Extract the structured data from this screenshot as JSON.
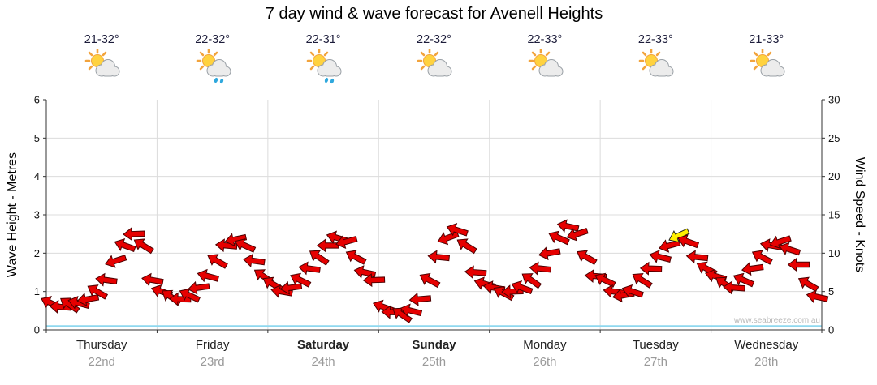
{
  "title": "7 day wind & wave forecast for Avenell Heights",
  "watermark": "www.seabreeze.com.au",
  "chart_data": {
    "type": "wind-arrow-series",
    "days": [
      {
        "name": "Thursday",
        "date": "22nd",
        "temp": "21-32°",
        "icon": "sun-cloud",
        "bold": false
      },
      {
        "name": "Friday",
        "date": "23rd",
        "temp": "22-32°",
        "icon": "sun-cloud-rain",
        "bold": false
      },
      {
        "name": "Saturday",
        "date": "24th",
        "temp": "22-31°",
        "icon": "sun-cloud-rain",
        "bold": true
      },
      {
        "name": "Sunday",
        "date": "25th",
        "temp": "22-32°",
        "icon": "sun-cloud",
        "bold": true
      },
      {
        "name": "Monday",
        "date": "26th",
        "temp": "22-33°",
        "icon": "sun-cloud",
        "bold": false
      },
      {
        "name": "Tuesday",
        "date": "27th",
        "temp": "22-33°",
        "icon": "sun-cloud",
        "bold": false
      },
      {
        "name": "Wednesday",
        "date": "28th",
        "temp": "21-33°",
        "icon": "sun-cloud",
        "bold": false
      }
    ],
    "left_axis": {
      "label": "Wave Height - Metres",
      "min": 0,
      "max": 6,
      "ticks": [
        0,
        1,
        2,
        3,
        4,
        5,
        6
      ]
    },
    "right_axis": {
      "label": "Wind Speed - Knots",
      "min": 0,
      "max": 30,
      "ticks": [
        0,
        5,
        10,
        15,
        20,
        25,
        30
      ]
    },
    "grid": {
      "show": true,
      "color": "#dcdcdc"
    },
    "wind": {
      "samples_per_day": 12,
      "speeds_knots": [
        3.5,
        3,
        3.3,
        3.5,
        4,
        5,
        6.5,
        9,
        11,
        12.5,
        11,
        6.5,
        5,
        4.3,
        4,
        4.5,
        5.5,
        7,
        9,
        11,
        11.8,
        11,
        9,
        7,
        6,
        5,
        5.5,
        6.5,
        8,
        9.5,
        11,
        12,
        11.5,
        9.5,
        7.5,
        6.5,
        3,
        2.3,
        2,
        2.5,
        4,
        6.5,
        9.5,
        12,
        13,
        11,
        7.5,
        6,
        5.5,
        4.8,
        5,
        5.5,
        6.5,
        8,
        10,
        12,
        13.5,
        12.5,
        9.5,
        7,
        6.5,
        5,
        4.5,
        5,
        6.5,
        8,
        9.5,
        11,
        12.3,
        11.5,
        9.5,
        8,
        7,
        6,
        5.5,
        6.5,
        8,
        9.5,
        11,
        11.5,
        10.5,
        8.5,
        6,
        4.3
      ],
      "directions_deg": [
        205,
        185,
        215,
        195,
        170,
        210,
        188,
        162,
        200,
        178,
        212,
        190,
        198,
        215,
        182,
        205,
        172,
        195,
        210,
        185,
        168,
        204,
        188,
        215,
        210,
        190,
        172,
        206,
        188,
        214,
        180,
        196,
        165,
        208,
        192,
        178,
        200,
        182,
        214,
        194,
        175,
        208,
        186,
        160,
        198,
        212,
        184,
        196,
        190,
        208,
        178,
        200,
        215,
        186,
        170,
        204,
        192,
        162,
        210,
        184,
        206,
        188,
        170,
        198,
        212,
        182,
        194,
        165,
        155,
        200,
        186,
        208,
        196,
        214,
        184,
        204,
        172,
        208,
        190,
        162,
        198,
        180,
        210,
        192
      ],
      "highlight_index": 68,
      "arrow_color": "#e60000",
      "arrow_outline": "#4d0000",
      "highlight_color": "#ffef00",
      "highlight_outline": "#222222"
    },
    "wave": {
      "approx_constant_m": 0.1,
      "color": "#8fd8ef"
    }
  }
}
